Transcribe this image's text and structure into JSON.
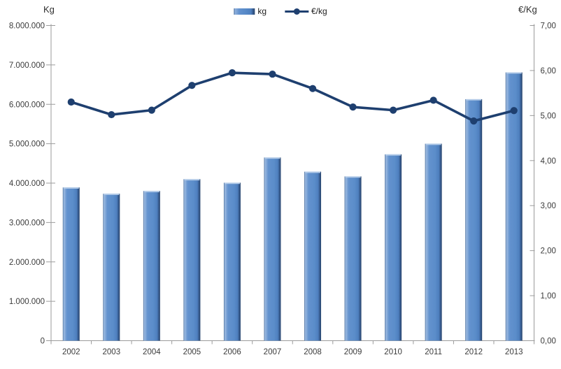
{
  "chart_data": {
    "type": "combo-bar-line",
    "title": "",
    "categories": [
      "2002",
      "2003",
      "2004",
      "2005",
      "2006",
      "2007",
      "2008",
      "2009",
      "2010",
      "2011",
      "2012",
      "2013"
    ],
    "series": [
      {
        "name": "kg",
        "type": "bar",
        "axis": "left",
        "values": [
          3890000,
          3730000,
          3800000,
          4100000,
          4010000,
          4650000,
          4290000,
          4170000,
          4730000,
          5000000,
          6130000,
          6810000
        ]
      },
      {
        "name": "€/kg",
        "type": "line",
        "axis": "right",
        "values": [
          5.3,
          5.02,
          5.12,
          5.67,
          5.95,
          5.92,
          5.6,
          5.19,
          5.12,
          5.34,
          4.88,
          5.11
        ]
      }
    ],
    "left_axis": {
      "title": "Kg",
      "min": 0,
      "max": 8000000,
      "step": 1000000,
      "tick_labels": [
        "0",
        "1.000.000",
        "2.000.000",
        "3.000.000",
        "4.000.000",
        "5.000.000",
        "6.000.000",
        "7.000.000",
        "8.000.000"
      ]
    },
    "right_axis": {
      "title": "€/Kg",
      "min": 0,
      "max": 7,
      "step": 1,
      "tick_labels": [
        "0,00",
        "1,00",
        "2,00",
        "3,00",
        "4,00",
        "5,00",
        "6,00",
        "7,00"
      ]
    },
    "legend": {
      "position": "top-center",
      "items": [
        "kg",
        "€/kg"
      ]
    },
    "grid": false,
    "colors": {
      "bar_fill": "#5B8DCA",
      "bar_highlight": "#9CBAE0",
      "bar_edge_dark": "#27436B",
      "bar_top_cap": "#B3CBE8",
      "line": "#1E3F6F",
      "axis_line": "#9B9B9B",
      "tick_text": "#3B3B3B"
    }
  }
}
